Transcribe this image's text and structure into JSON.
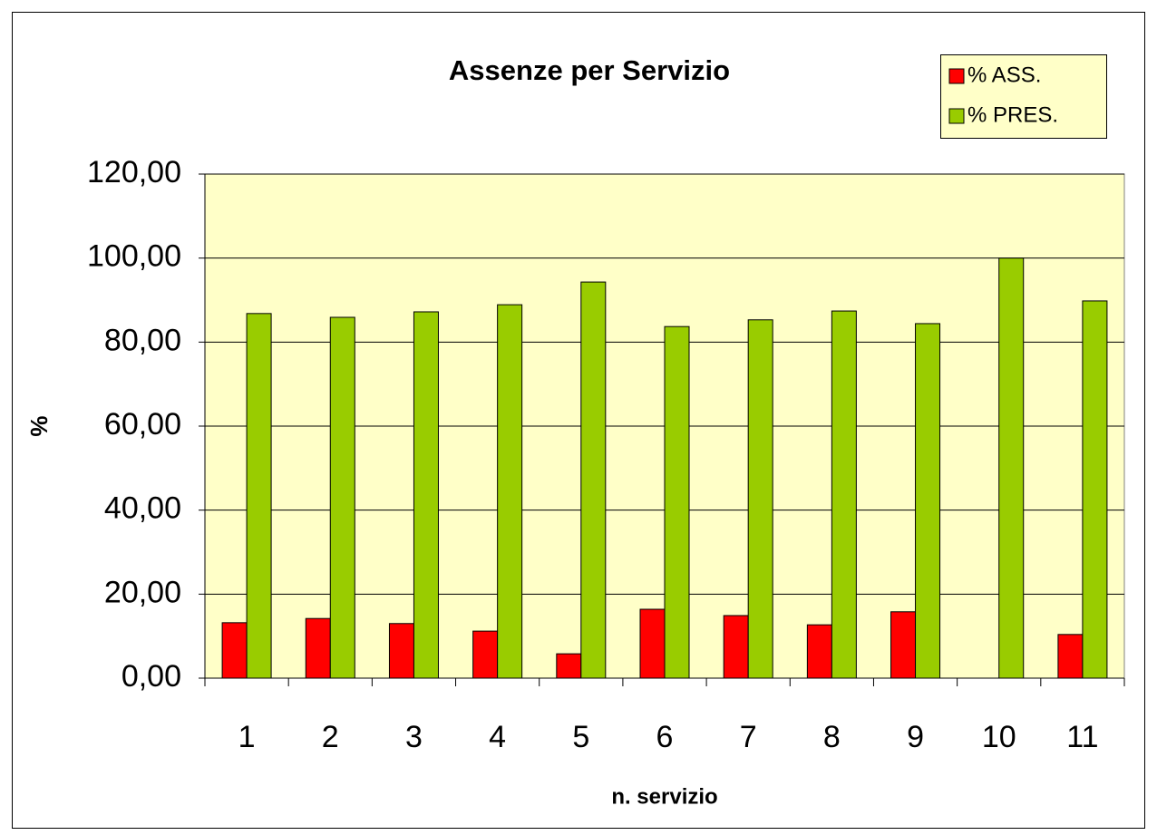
{
  "chart_data": {
    "type": "bar",
    "title": "Assenze per Servizio",
    "x_label": "n. servizio",
    "y_label": "%",
    "categories": [
      "1",
      "2",
      "3",
      "4",
      "5",
      "6",
      "7",
      "8",
      "9",
      "10",
      "11"
    ],
    "series": [
      {
        "name": "% ASS.",
        "color": "#ff0000",
        "values": [
          13.2,
          14.2,
          13.0,
          11.2,
          5.8,
          16.4,
          14.9,
          12.7,
          15.8,
          0,
          10.4
        ]
      },
      {
        "name": "% PRES.",
        "color": "#99cc00",
        "values": [
          86.8,
          85.9,
          87.2,
          88.9,
          94.3,
          83.7,
          85.3,
          87.4,
          84.4,
          100,
          89.8
        ]
      }
    ],
    "ylim": [
      0,
      120
    ],
    "yticks": [
      {
        "value": 0,
        "label": "0,00"
      },
      {
        "value": 20,
        "label": "20,00"
      },
      {
        "value": 40,
        "label": "40,00"
      },
      {
        "value": 60,
        "label": "60,00"
      },
      {
        "value": 80,
        "label": "80,00"
      },
      {
        "value": 100,
        "label": "100,00"
      },
      {
        "value": 120,
        "label": "120,00"
      }
    ],
    "grid": true,
    "legend": "top-right",
    "plot_background": "#ffffc8"
  }
}
